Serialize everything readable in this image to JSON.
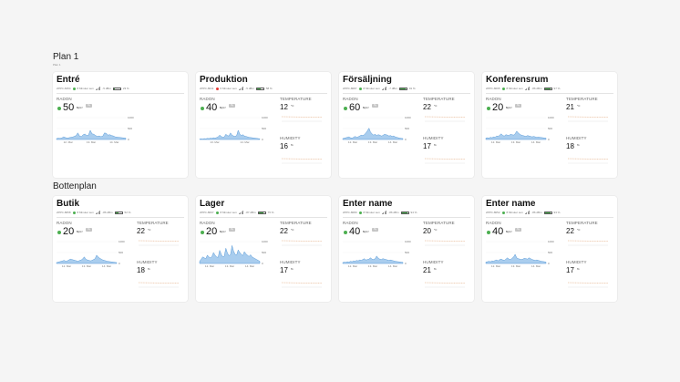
{
  "sections": [
    {
      "title": "Plan 1",
      "subtitle": "Plan 1"
    },
    {
      "title": "Bottenplan"
    }
  ],
  "labels": {
    "radon": "RADON",
    "temperature": "TEMPERATURE",
    "humidity": "HUMIDITY"
  },
  "units": {
    "radon": "Bq/m³",
    "temp": "°C",
    "hum": "%"
  },
  "cards": [
    {
      "name": "Entré",
      "serial": "2PPC-8154",
      "last_seen": "8 Minuter sen",
      "signal": "-5 dBm",
      "battery": "23 %",
      "battery_level": 0.23,
      "status_color": "#4caf50",
      "radon": "50",
      "badge": "Ny",
      "has_climate": false,
      "chart_data": {
        "type": "area",
        "x_ticks": [
          "12. Mar",
          "13. Mar",
          "14. Mar"
        ],
        "y_ticks": [
          "1000",
          "500",
          "0"
        ],
        "ylim": [
          0,
          1000
        ],
        "values": [
          40,
          60,
          50,
          70,
          120,
          90,
          60,
          80,
          100,
          110,
          140,
          180,
          300,
          160,
          130,
          220,
          250,
          180,
          200,
          420,
          260,
          240,
          180,
          140,
          160,
          130,
          150,
          300,
          280,
          200,
          220,
          180,
          160,
          120,
          110,
          100,
          90,
          80,
          70,
          60
        ]
      }
    },
    {
      "name": "Produktion",
      "serial": "2PPC-8041",
      "last_seen": "6 Minuter sen",
      "signal": "-5 dBm",
      "battery": "58 %",
      "battery_level": 0.58,
      "status_color": "#e53935",
      "radon": "40",
      "badge": "Ny",
      "has_climate": true,
      "temperature": "12",
      "humidity": "16",
      "chart_data": {
        "type": "area",
        "x_ticks": [
          "13. Mar",
          "14. Mar"
        ],
        "y_ticks": [
          "1000",
          "500",
          "0"
        ],
        "ylim": [
          0,
          1000
        ],
        "values": [
          20,
          30,
          20,
          40,
          30,
          50,
          40,
          60,
          50,
          80,
          60,
          90,
          120,
          200,
          140,
          100,
          120,
          240,
          180,
          160,
          300,
          200,
          160,
          140,
          180,
          420,
          260,
          180,
          220,
          160,
          140,
          120,
          100,
          90,
          80,
          70,
          60,
          50,
          40,
          30
        ]
      }
    },
    {
      "name": "Försäljning",
      "serial": "2PPC-8087",
      "last_seen": "8 Minuter sen",
      "signal": "-7 dBm",
      "battery": "91 %",
      "battery_level": 0.91,
      "status_color": "#4caf50",
      "radon": "60",
      "badge": "Ny",
      "has_climate": true,
      "temperature": "22",
      "humidity": "17",
      "chart_data": {
        "type": "area",
        "x_ticks": [
          "12. Mar",
          "13. Mar",
          "14. Mar"
        ],
        "y_ticks": [
          "1000",
          "500",
          "0"
        ],
        "ylim": [
          0,
          1000
        ],
        "values": [
          40,
          60,
          80,
          100,
          120,
          80,
          60,
          100,
          140,
          100,
          120,
          160,
          200,
          180,
          220,
          300,
          400,
          520,
          340,
          260,
          200,
          240,
          180,
          220,
          200,
          160,
          180,
          240,
          220,
          200,
          160,
          180,
          140,
          160,
          120,
          100,
          80,
          60,
          50,
          40
        ]
      }
    },
    {
      "name": "Konferensrum",
      "serial": "2PPC-8095",
      "last_seen": "8 Minuter sen",
      "signal": "-86 dBm",
      "battery": "97 %",
      "battery_level": 0.97,
      "status_color": "#4caf50",
      "radon": "20",
      "badge": "Ny",
      "has_climate": true,
      "temperature": "21",
      "humidity": "18",
      "chart_data": {
        "type": "area",
        "x_ticks": [
          "12. Mar",
          "13. Mar",
          "14. Mar"
        ],
        "y_ticks": [
          "1000",
          "500",
          "0"
        ],
        "ylim": [
          0,
          1000
        ],
        "values": [
          60,
          80,
          60,
          100,
          80,
          120,
          100,
          160,
          140,
          200,
          260,
          180,
          160,
          220,
          200,
          180,
          240,
          220,
          200,
          260,
          380,
          300,
          240,
          200,
          180,
          160,
          140,
          180,
          160,
          140,
          120,
          140,
          120,
          100,
          110,
          100,
          90,
          80,
          70,
          60
        ]
      }
    },
    {
      "name": "Butik",
      "serial": "2PPC-8058",
      "last_seen": "8 Minuter sen",
      "signal": "-86 dBm",
      "battery": "52 %",
      "battery_level": 0.52,
      "status_color": "#4caf50",
      "radon": "20",
      "badge": "Ny",
      "has_climate": true,
      "temperature": "22",
      "humidity": "18",
      "chart_data": {
        "type": "area",
        "x_ticks": [
          "12. Mar",
          "13. Mar",
          "14. Mar"
        ],
        "y_ticks": [
          "1000",
          "500",
          "0"
        ],
        "ylim": [
          0,
          1000
        ],
        "values": [
          40,
          60,
          80,
          100,
          120,
          140,
          100,
          120,
          160,
          200,
          180,
          160,
          140,
          120,
          100,
          140,
          160,
          220,
          300,
          200,
          160,
          140,
          120,
          140,
          180,
          220,
          380,
          300,
          240,
          200,
          160,
          140,
          120,
          100,
          90,
          80,
          70,
          60,
          50,
          40
        ]
      }
    },
    {
      "name": "Lager",
      "serial": "2PPC-8097",
      "last_seen": "8 Minuter sen",
      "signal": "-87 dBm",
      "battery": "75 %",
      "battery_level": 0.75,
      "status_color": "#4caf50",
      "radon": "20",
      "badge": "Ny",
      "has_climate": true,
      "temperature": "22",
      "humidity": "17",
      "chart_data": {
        "type": "area",
        "x_ticks": [
          "12. Mar",
          "13. Mar",
          "14. Mar"
        ],
        "y_ticks": [
          "1000",
          "500",
          "0"
        ],
        "ylim": [
          0,
          1000
        ],
        "values": [
          100,
          200,
          300,
          260,
          220,
          380,
          300,
          260,
          320,
          500,
          380,
          300,
          280,
          600,
          420,
          300,
          340,
          700,
          480,
          360,
          400,
          820,
          560,
          420,
          380,
          620,
          500,
          420,
          360,
          540,
          440,
          380,
          320,
          400,
          300,
          260,
          220,
          180,
          140,
          100
        ]
      }
    },
    {
      "name": "Enter name",
      "serial": "2PPC-8080",
      "last_seen": "8 Minuter sen",
      "signal": "-86 dBm",
      "battery": "94 %",
      "battery_level": 0.94,
      "status_color": "#4caf50",
      "radon": "40",
      "badge": "Ny",
      "has_climate": true,
      "temperature": "20",
      "humidity": "21",
      "chart_data": {
        "type": "area",
        "x_ticks": [
          "12. Mar",
          "13. Mar",
          "14. Mar"
        ],
        "y_ticks": [
          "1000",
          "500",
          "0"
        ],
        "ylim": [
          0,
          1000
        ],
        "values": [
          40,
          60,
          50,
          80,
          60,
          100,
          80,
          120,
          100,
          140,
          120,
          160,
          140,
          180,
          220,
          160,
          180,
          200,
          260,
          200,
          180,
          220,
          340,
          240,
          200,
          180,
          220,
          200,
          180,
          160,
          140,
          160,
          140,
          120,
          100,
          90,
          80,
          70,
          60,
          50
        ]
      }
    },
    {
      "name": "Enter name",
      "serial": "2PPC-8052",
      "last_seen": "8 Minuter sen",
      "signal": "-86 dBm",
      "battery": "93 %",
      "battery_level": 0.93,
      "status_color": "#4caf50",
      "radon": "40",
      "badge": "Ny",
      "has_climate": true,
      "temperature": "22",
      "humidity": "17",
      "chart_data": {
        "type": "area",
        "x_ticks": [
          "12. Mar",
          "13. Mar",
          "14. Mar"
        ],
        "y_ticks": [
          "1000",
          "500",
          "0"
        ],
        "ylim": [
          0,
          1000
        ],
        "values": [
          60,
          80,
          100,
          80,
          120,
          100,
          140,
          160,
          120,
          180,
          200,
          160,
          140,
          200,
          260,
          200,
          180,
          240,
          300,
          420,
          260,
          220,
          200,
          180,
          200,
          240,
          220,
          200,
          260,
          220,
          180,
          160,
          140,
          160,
          140,
          120,
          100,
          90,
          80,
          60
        ]
      }
    }
  ]
}
